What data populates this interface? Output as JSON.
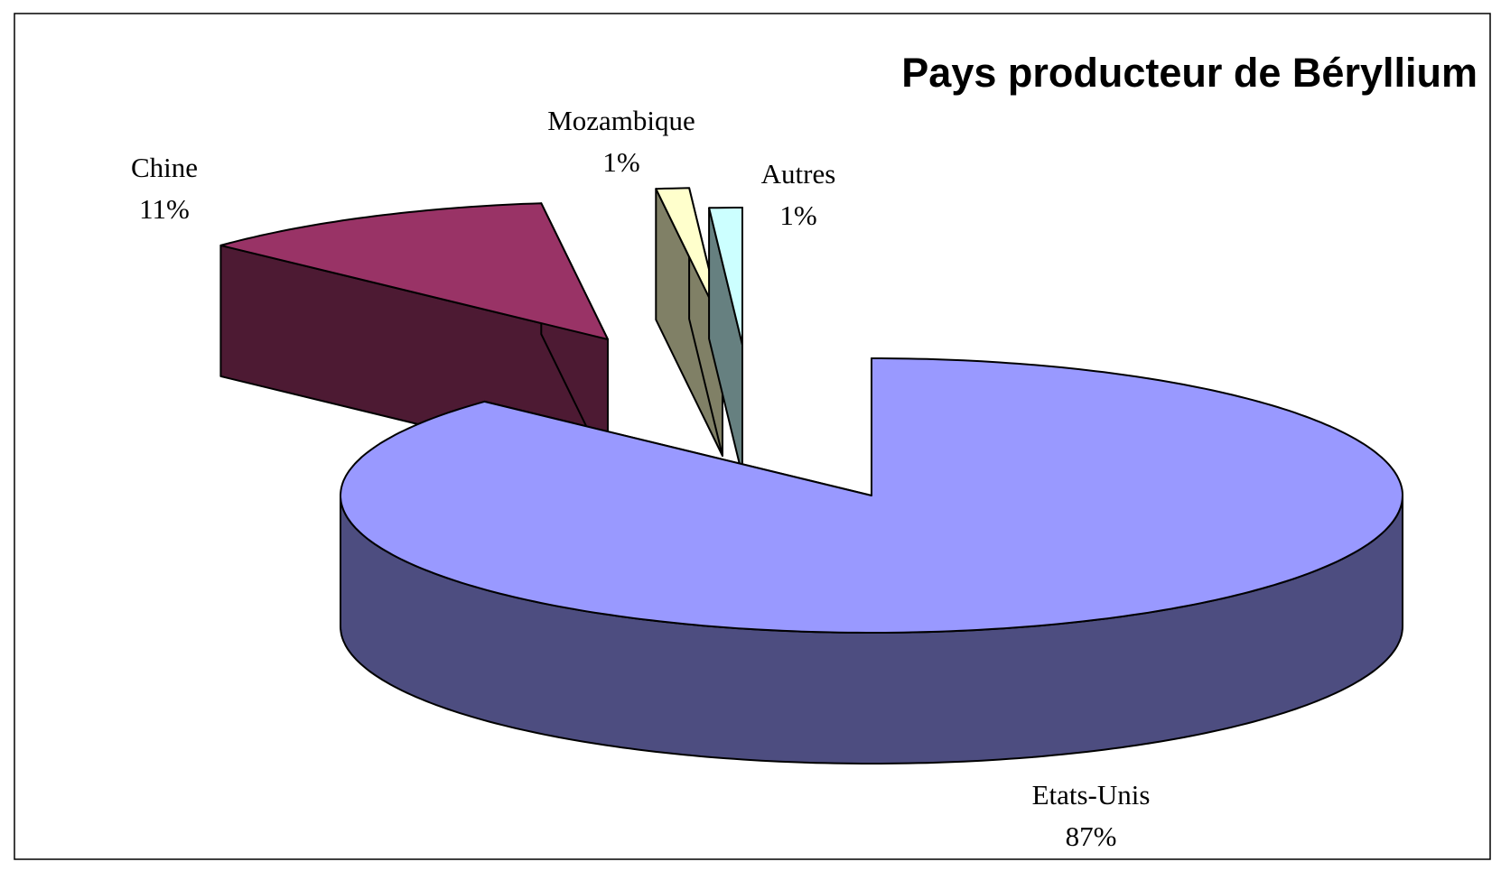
{
  "chart_data": {
    "type": "pie",
    "title": "Pays producteur de Béryllium",
    "categories": [
      "Etats-Unis",
      "Chine",
      "Mozambique",
      "Autres"
    ],
    "values": [
      87,
      11,
      1,
      1
    ],
    "value_labels": [
      "87%",
      "11%",
      "1%",
      "1%"
    ],
    "colors": [
      "#9999ff",
      "#993366",
      "#ffffcc",
      "#ccffff"
    ]
  }
}
